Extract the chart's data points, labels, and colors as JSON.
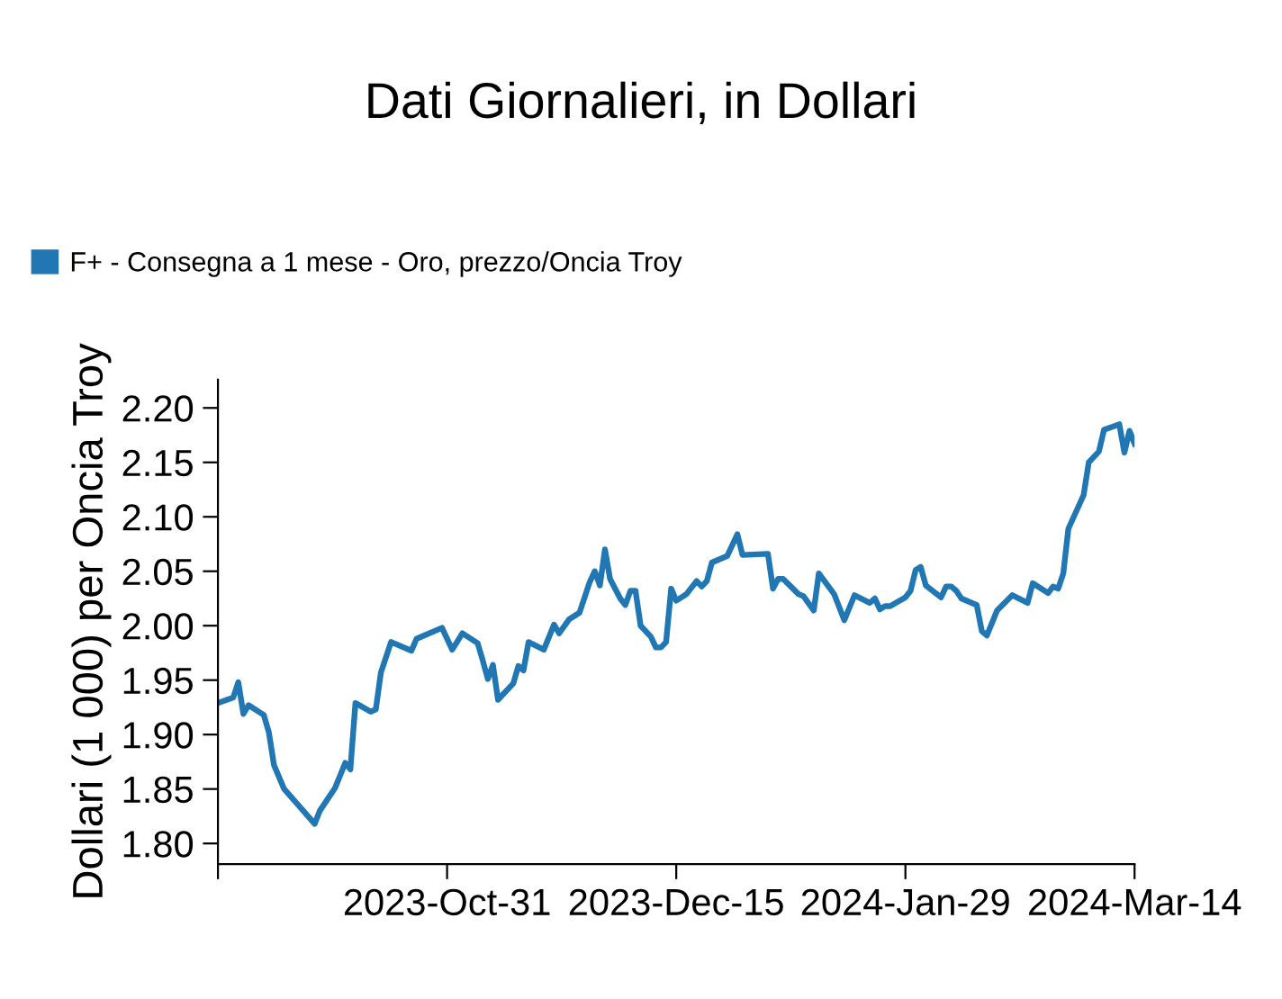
{
  "chart_data": {
    "type": "line",
    "title": "Dati Giornalieri, in Dollari",
    "ylabel": "Dollari (1 000) per Oncia Troy",
    "x": [
      "2023-09-16",
      "2023-09-19",
      "2023-09-20",
      "2023-09-21",
      "2023-09-22",
      "2023-09-25",
      "2023-09-26",
      "2023-09-27",
      "2023-09-29",
      "2023-10-05",
      "2023-10-06",
      "2023-10-09",
      "2023-10-11",
      "2023-10-12",
      "2023-10-13",
      "2023-10-16",
      "2023-10-17",
      "2023-10-18",
      "2023-10-20",
      "2023-10-24",
      "2023-10-25",
      "2023-10-30",
      "2023-11-01",
      "2023-11-03",
      "2023-11-06",
      "2023-11-07",
      "2023-11-08",
      "2023-11-09",
      "2023-11-10",
      "2023-11-13",
      "2023-11-14",
      "2023-11-15",
      "2023-11-16",
      "2023-11-19",
      "2023-11-21",
      "2023-11-22",
      "2023-11-24",
      "2023-11-26",
      "2023-11-28",
      "2023-11-29",
      "2023-11-30",
      "2023-12-01",
      "2023-12-02",
      "2023-12-04",
      "2023-12-05",
      "2023-12-06",
      "2023-12-07",
      "2023-12-08",
      "2023-12-10",
      "2023-12-11",
      "2023-12-12",
      "2023-12-13",
      "2023-12-14",
      "2023-12-15",
      "2023-12-17",
      "2023-12-19",
      "2023-12-20",
      "2023-12-21",
      "2023-12-22",
      "2023-12-25",
      "2023-12-27",
      "2023-12-28",
      "2024-01-02",
      "2024-01-03",
      "2024-01-04",
      "2024-01-05",
      "2024-01-08",
      "2024-01-09",
      "2024-01-11",
      "2024-01-12",
      "2024-01-15",
      "2024-01-17",
      "2024-01-19",
      "2024-01-22",
      "2024-01-23",
      "2024-01-24",
      "2024-01-25",
      "2024-01-26",
      "2024-01-29",
      "2024-01-30",
      "2024-01-31",
      "2024-02-01",
      "2024-02-02",
      "2024-02-05",
      "2024-02-06",
      "2024-02-07",
      "2024-02-08",
      "2024-02-09",
      "2024-02-12",
      "2024-02-13",
      "2024-02-14",
      "2024-02-16",
      "2024-02-19",
      "2024-02-22",
      "2024-02-23",
      "2024-02-26",
      "2024-02-27",
      "2024-02-28",
      "2024-02-29",
      "2024-03-01",
      "2024-03-04",
      "2024-03-05",
      "2024-03-07",
      "2024-03-08",
      "2024-03-11",
      "2024-03-12",
      "2024-03-13",
      "2024-03-14"
    ],
    "series": [
      {
        "name": "F+ - Consegna a 1 mese - Oro, prezzo/Oncia Troy",
        "color": "#2077b4",
        "values": [
          1.929,
          1.934,
          1.948,
          1.919,
          1.927,
          1.918,
          1.902,
          1.872,
          1.85,
          1.818,
          1.83,
          1.851,
          1.874,
          1.868,
          1.929,
          1.921,
          1.923,
          1.957,
          1.985,
          1.977,
          1.988,
          1.998,
          1.978,
          1.993,
          1.984,
          1.968,
          1.951,
          1.964,
          1.932,
          1.947,
          1.963,
          1.959,
          1.985,
          1.978,
          2.001,
          1.993,
          2.006,
          2.012,
          2.04,
          2.05,
          2.037,
          2.07,
          2.043,
          2.025,
          2.019,
          2.032,
          2.032,
          2.0,
          1.99,
          1.98,
          1.98,
          1.985,
          2.034,
          2.023,
          2.029,
          2.041,
          2.036,
          2.041,
          2.058,
          2.064,
          2.084,
          2.065,
          2.066,
          2.034,
          2.043,
          2.043,
          2.029,
          2.027,
          2.014,
          2.048,
          2.029,
          2.005,
          2.028,
          2.021,
          2.025,
          2.015,
          2.018,
          2.018,
          2.026,
          2.032,
          2.051,
          2.054,
          2.037,
          2.026,
          2.036,
          2.036,
          2.032,
          2.025,
          2.019,
          1.995,
          1.991,
          2.014,
          2.028,
          2.021,
          2.039,
          2.03,
          2.036,
          2.034,
          2.048,
          2.089,
          2.12,
          2.15,
          2.16,
          2.18,
          2.185,
          2.159,
          2.179,
          2.167
        ]
      }
    ],
    "xlim": [
      "2023-09-16",
      "2024-03-14"
    ],
    "xticks": [
      {
        "value": "2023-09-16",
        "label": null
      },
      {
        "value": "2023-10-31",
        "label": "2023-Oct-31"
      },
      {
        "value": "2023-12-15",
        "label": "2023-Dec-15"
      },
      {
        "value": "2024-01-29",
        "label": "2024-Jan-29"
      },
      {
        "value": "2024-03-14",
        "label": "2024-Mar-14"
      }
    ],
    "ylim": [
      1.781,
      2.226
    ],
    "yticks": [
      {
        "value": 1.8,
        "label": "1.80"
      },
      {
        "value": 1.85,
        "label": "1.85"
      },
      {
        "value": 1.9,
        "label": "1.90"
      },
      {
        "value": 1.95,
        "label": "1.95"
      },
      {
        "value": 2.0,
        "label": "2.00"
      },
      {
        "value": 2.05,
        "label": "2.05"
      },
      {
        "value": 2.1,
        "label": "2.10"
      },
      {
        "value": 2.15,
        "label": "2.15"
      },
      {
        "value": 2.2,
        "label": "2.20"
      }
    ],
    "legend": "top left",
    "grid": false
  }
}
